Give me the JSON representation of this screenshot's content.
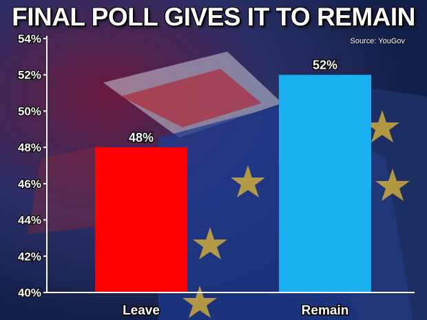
{
  "title": "FINAL POLL GIVES IT TO REMAIN",
  "source": "Source: YouGov",
  "colors": {
    "leave": "#ff0000",
    "remain": "#1ab0f0",
    "background": "#1c2c5c",
    "axis": "#ffffff"
  },
  "chart_data": {
    "type": "bar",
    "title": "FINAL POLL GIVES IT TO REMAIN",
    "xlabel": "",
    "ylabel": "",
    "categories": [
      "Leave",
      "Remain"
    ],
    "values": [
      48,
      52
    ],
    "data_labels": [
      "48%",
      "52%"
    ],
    "bar_colors": [
      "#ff0000",
      "#1ab0f0"
    ],
    "ylim": [
      40,
      54
    ],
    "yticks": [
      40,
      42,
      44,
      46,
      48,
      50,
      52,
      54
    ],
    "ytick_labels": [
      "40%",
      "42%",
      "44%",
      "46%",
      "48%",
      "50%",
      "52%",
      "54%"
    ],
    "grid": false,
    "legend": "none"
  }
}
